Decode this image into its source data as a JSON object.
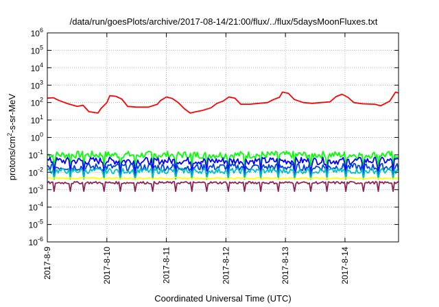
{
  "chart_data": {
    "type": "line",
    "title": "/data/run/goesPlots/archive/2017-08-14/21:00/flux/../flux/5daysMoonFluxes.txt",
    "xlabel": "Coordinated Universal Time (UTC)",
    "ylabel": {
      "prefix": "protons/cm",
      "sup": "2",
      "suffix": "-s-sr-MeV"
    },
    "yscale": "log",
    "ylim_exp": [
      -6,
      6
    ],
    "yticks": [
      {
        "base": "10",
        "exp": "6"
      },
      {
        "base": "10",
        "exp": "5"
      },
      {
        "base": "10",
        "exp": "4"
      },
      {
        "base": "10",
        "exp": "3"
      },
      {
        "base": "10",
        "exp": "2"
      },
      {
        "base": "10",
        "exp": "1"
      },
      {
        "base": "10",
        "exp": "0"
      },
      {
        "base": "10",
        "exp": "-1"
      },
      {
        "base": "10",
        "exp": "-2"
      },
      {
        "base": "10",
        "exp": "-3"
      },
      {
        "base": "10",
        "exp": "-4"
      },
      {
        "base": "10",
        "exp": "-5"
      },
      {
        "base": "10",
        "exp": "-6"
      }
    ],
    "xlim_days": [
      0,
      5.9
    ],
    "xticks": [
      "2017-8-9",
      "2017-8-10",
      "2017-8-11",
      "2017-8-12",
      "2017-8-13",
      "2017-8-14"
    ],
    "grid": true,
    "series": [
      {
        "color": "#ff0000",
        "points": [
          [
            0.0,
            180
          ],
          [
            0.1,
            190
          ],
          [
            0.2,
            130
          ],
          [
            0.35,
            85
          ],
          [
            0.5,
            60
          ],
          [
            0.6,
            70
          ],
          [
            0.7,
            30
          ],
          [
            0.85,
            25
          ],
          [
            0.9,
            45
          ],
          [
            1.0,
            100
          ],
          [
            1.05,
            250
          ],
          [
            1.15,
            230
          ],
          [
            1.25,
            160
          ],
          [
            1.35,
            60
          ],
          [
            1.5,
            55
          ],
          [
            1.7,
            55
          ],
          [
            1.85,
            80
          ],
          [
            1.9,
            130
          ],
          [
            2.0,
            210
          ],
          [
            2.1,
            170
          ],
          [
            2.2,
            100
          ],
          [
            2.3,
            45
          ],
          [
            2.4,
            25
          ],
          [
            2.5,
            30
          ],
          [
            2.6,
            35
          ],
          [
            2.75,
            50
          ],
          [
            2.85,
            90
          ],
          [
            2.95,
            120
          ],
          [
            3.05,
            210
          ],
          [
            3.15,
            180
          ],
          [
            3.25,
            80
          ],
          [
            3.4,
            80
          ],
          [
            3.55,
            90
          ],
          [
            3.7,
            100
          ],
          [
            3.8,
            150
          ],
          [
            3.9,
            200
          ],
          [
            3.95,
            400
          ],
          [
            4.05,
            340
          ],
          [
            4.15,
            150
          ],
          [
            4.3,
            100
          ],
          [
            4.45,
            90
          ],
          [
            4.6,
            100
          ],
          [
            4.75,
            110
          ],
          [
            4.85,
            220
          ],
          [
            4.95,
            300
          ],
          [
            5.05,
            200
          ],
          [
            5.15,
            100
          ],
          [
            5.3,
            85
          ],
          [
            5.5,
            80
          ],
          [
            5.6,
            65
          ],
          [
            5.75,
            120
          ],
          [
            5.85,
            400
          ],
          [
            5.9,
            350
          ]
        ]
      },
      {
        "color": "#00ff00",
        "level": 0.1,
        "jitter": 1.2,
        "dip": 0.025
      },
      {
        "color": "#0000ff",
        "level": 0.045,
        "jitter": 1.2,
        "dip": 0.012
      },
      {
        "color": "#0040e0",
        "level": 0.02,
        "jitter": 1.2,
        "dip": 0.006
      },
      {
        "color": "#00c0c0",
        "level": 0.012,
        "jitter": 0.9,
        "dip": 0.004
      },
      {
        "color": "#ffff00",
        "level": 0.0045,
        "jitter": 0.25,
        "dip": null
      },
      {
        "color": "#8b2252",
        "level": 0.0025,
        "jitter": 0.4,
        "dip": 0.0008
      }
    ]
  }
}
